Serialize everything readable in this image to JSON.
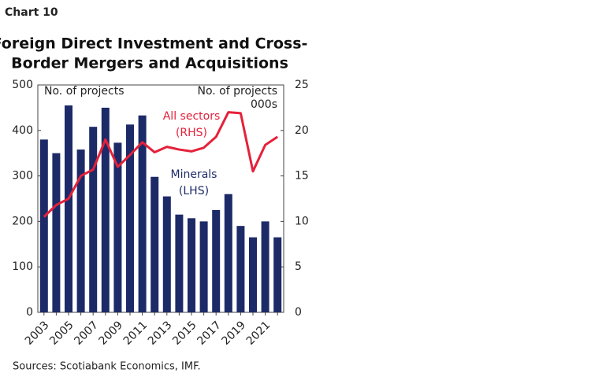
{
  "chart_data": {
    "type": "bar_line",
    "label": "Chart 10",
    "title": [
      "Foreign Direct Investment and Cross-",
      "Border Mergers and Acquisitions"
    ],
    "ylabel": "No. of projects",
    "y2label": [
      "No. of projects",
      "000s"
    ],
    "source": "Sources: Scotiabank Economics, IMF.",
    "categories": [
      "2003",
      null,
      "2005",
      null,
      "2007",
      null,
      "2009",
      null,
      "2011",
      null,
      "2013",
      null,
      "2015",
      null,
      "2017",
      null,
      "2019",
      null,
      "2021",
      null
    ],
    "series": [
      {
        "type": "bar",
        "label_lines": [
          "Minerals",
          "(LHS)"
        ],
        "color": "#1c2a68",
        "values": [
          380,
          350,
          455,
          358,
          408,
          450,
          373,
          413,
          433,
          298,
          255,
          215,
          207,
          200,
          225,
          260,
          190,
          165,
          200,
          165
        ]
      },
      {
        "type": "line",
        "label_lines": [
          "All sectors",
          "(RHS)"
        ],
        "color": "#e5213a",
        "axis": "y2",
        "values": [
          10.5,
          11.8,
          12.5,
          15,
          15.7,
          19,
          16,
          17.3,
          18.7,
          17.6,
          18.2,
          17.9,
          17.7,
          18.1,
          19.3,
          22,
          21.9,
          15.5,
          18.4,
          19.3
        ]
      }
    ],
    "ylim": [
      0,
      500
    ],
    "yticks": [
      0,
      100,
      200,
      300,
      400,
      500
    ],
    "y2lim": [
      0,
      25
    ],
    "y2ticks": [
      0,
      5,
      10,
      15,
      20,
      25
    ]
  }
}
